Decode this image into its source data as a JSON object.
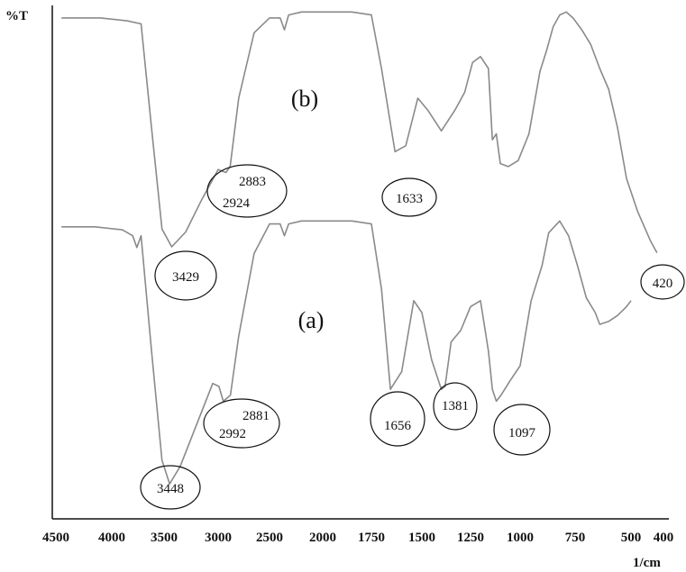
{
  "chart_data": {
    "type": "line",
    "ylabel": "%T",
    "xlabel": "1/cm",
    "xlim": [
      4500,
      400
    ],
    "x_reversed": true,
    "x_ticks": [
      {
        "value": 4500,
        "label": "4500"
      },
      {
        "value": 4000,
        "label": "4000"
      },
      {
        "value": 3500,
        "label": "3500"
      },
      {
        "value": 3000,
        "label": "3000"
      },
      {
        "value": 2500,
        "label": "2500"
      },
      {
        "value": 2000,
        "label": "2000"
      },
      {
        "value": 1750,
        "label": "1750"
      },
      {
        "value": 1500,
        "label": "1500"
      },
      {
        "value": 1250,
        "label": "1250"
      },
      {
        "value": 1000,
        "label": "1000"
      },
      {
        "value": 750,
        "label": "750"
      },
      {
        "value": 500,
        "label": "500"
      },
      {
        "value": 400,
        "label": "400"
      }
    ],
    "series": [
      {
        "name": "(b)",
        "x": [
          4450,
          4100,
          3850,
          3720,
          3620,
          3520,
          3429,
          3300,
          3150,
          3000,
          2924,
          2883,
          2800,
          2650,
          2500,
          2400,
          2360,
          2320,
          2200,
          2000,
          1850,
          1750,
          1700,
          1633,
          1580,
          1520,
          1470,
          1400,
          1330,
          1280,
          1240,
          1200,
          1160,
          1140,
          1120,
          1100,
          1060,
          1010,
          960,
          910,
          880,
          850,
          820,
          790,
          760,
          720,
          680,
          640,
          600,
          560,
          520,
          480,
          440,
          420
        ],
        "y": [
          97,
          97,
          96,
          95,
          60,
          26,
          20,
          25,
          36,
          46,
          45,
          47,
          70,
          92,
          97,
          97,
          93,
          98,
          99,
          99,
          99,
          98,
          80,
          52,
          54,
          70,
          66,
          59,
          66,
          72,
          82,
          84,
          80,
          56,
          58,
          48,
          47,
          49,
          58,
          79,
          86,
          94,
          98,
          99,
          97,
          93,
          88,
          80,
          73,
          60,
          43,
          32,
          22,
          18
        ],
        "ylim": [
          0,
          100
        ]
      },
      {
        "name": "(a)",
        "x": [
          4450,
          4150,
          3900,
          3800,
          3760,
          3720,
          3620,
          3520,
          3448,
          3350,
          3200,
          3050,
          2992,
          2950,
          2881,
          2800,
          2650,
          2500,
          2400,
          2360,
          2320,
          2200,
          2000,
          1850,
          1750,
          1700,
          1656,
          1600,
          1540,
          1500,
          1450,
          1400,
          1381,
          1350,
          1300,
          1250,
          1200,
          1160,
          1140,
          1120,
          1097,
          1050,
          1000,
          950,
          900,
          870,
          820,
          780,
          740,
          700,
          660,
          640,
          600,
          560,
          520,
          500
        ],
        "y": [
          97,
          97,
          96,
          94,
          90,
          94,
          55,
          18,
          10,
          16,
          30,
          44,
          43,
          38,
          40,
          60,
          88,
          98,
          98,
          94,
          98,
          99,
          99,
          99,
          98,
          76,
          42,
          48,
          72,
          68,
          52,
          42,
          43,
          58,
          62,
          70,
          72,
          55,
          42,
          38,
          40,
          45,
          50,
          72,
          84,
          95,
          99,
          94,
          84,
          73,
          68,
          64,
          65,
          67,
          70,
          72
        ],
        "ylim": [
          0,
          100
        ]
      }
    ],
    "curve_labels": [
      {
        "series": "(b)",
        "text": "(b)"
      },
      {
        "series": "(a)",
        "text": "(a)"
      }
    ],
    "annotations": [
      {
        "series": "(b)",
        "texts": [
          "3429"
        ]
      },
      {
        "series": "(b)",
        "texts": [
          "2883",
          "2924"
        ]
      },
      {
        "series": "(b)",
        "texts": [
          "1633"
        ]
      },
      {
        "series": "(b)",
        "texts": [
          "420"
        ]
      },
      {
        "series": "(a)",
        "texts": [
          "3448"
        ]
      },
      {
        "series": "(a)",
        "texts": [
          "2881",
          "2992"
        ]
      },
      {
        "series": "(a)",
        "texts": [
          "1656"
        ]
      },
      {
        "series": "(a)",
        "texts": [
          "1381"
        ]
      },
      {
        "series": "(a)",
        "texts": [
          "1097"
        ]
      }
    ]
  }
}
